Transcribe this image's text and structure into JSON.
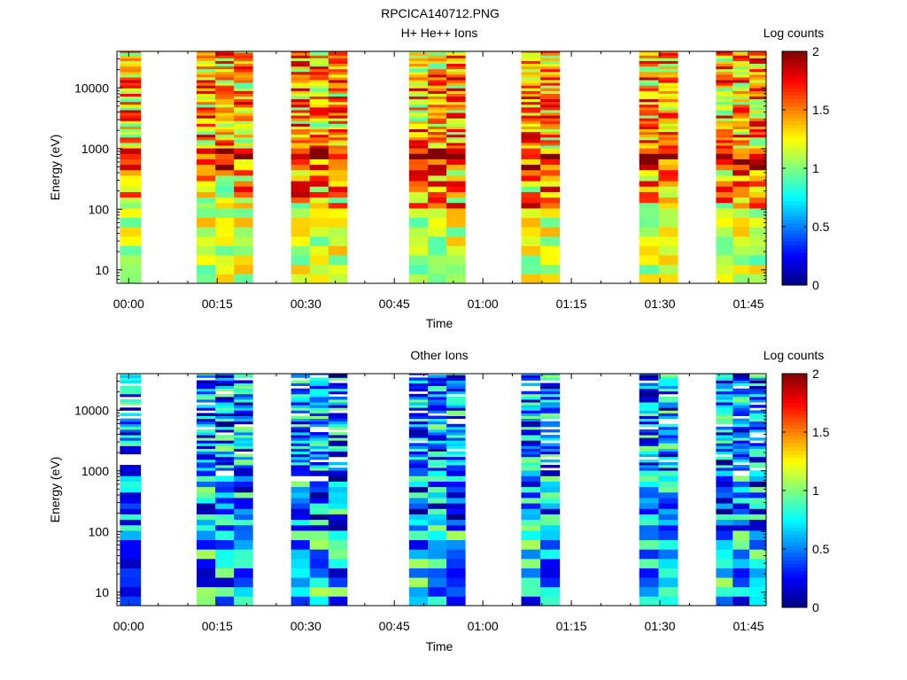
{
  "figure_title": "RPCICA140712.PNG",
  "chart_data": [
    {
      "type": "heatmap",
      "title": "H+ He++ Ions",
      "xlabel": "Time",
      "ylabel": "Energy (eV)",
      "colorbar_label": "Log counts",
      "colorbar_ticks": [
        "0",
        "0.5",
        "1",
        "1.5",
        "2"
      ],
      "clim": [
        0,
        2
      ],
      "colormap": "jet",
      "x_ticks": [
        "00:00",
        "00:15",
        "00:30",
        "00:45",
        "01:00",
        "01:15",
        "01:30",
        "01:45"
      ],
      "x_range_minutes": [
        -2,
        108
      ],
      "y_ticks": [
        "10",
        "100",
        "1000",
        "10000"
      ],
      "y_range_ev": [
        6,
        40000
      ],
      "y_scale": "log",
      "colored_time_ranges_minutes": [
        [
          -1.5,
          2
        ],
        [
          11.5,
          21
        ],
        [
          27.5,
          37
        ],
        [
          47.5,
          57
        ],
        [
          66.5,
          73
        ],
        [
          86.5,
          93
        ],
        [
          99.5,
          108
        ]
      ],
      "level_range": [
        0.9,
        1.9
      ],
      "low_energy_level_range": [
        0.9,
        1.4
      ]
    },
    {
      "type": "heatmap",
      "title": "Other Ions",
      "xlabel": "Time",
      "ylabel": "Energy (eV)",
      "colorbar_label": "Log counts",
      "colorbar_ticks": [
        "0",
        "0.5",
        "1",
        "1.5",
        "2"
      ],
      "clim": [
        0,
        2
      ],
      "colormap": "jet",
      "x_ticks": [
        "00:00",
        "00:15",
        "00:30",
        "00:45",
        "01:00",
        "01:15",
        "01:30",
        "01:45"
      ],
      "x_range_minutes": [
        -2,
        108
      ],
      "y_ticks": [
        "10",
        "100",
        "1000",
        "10000"
      ],
      "y_range_ev": [
        6,
        40000
      ],
      "y_scale": "log",
      "colored_time_ranges_minutes": [
        [
          -1.5,
          2
        ],
        [
          11.5,
          21
        ],
        [
          27.5,
          37
        ],
        [
          47.5,
          57
        ],
        [
          66.5,
          73
        ],
        [
          86.5,
          93
        ],
        [
          99.5,
          108
        ]
      ],
      "level_range": [
        0.0,
        1.05
      ],
      "low_energy_level_range": [
        0.1,
        1.1
      ]
    }
  ]
}
